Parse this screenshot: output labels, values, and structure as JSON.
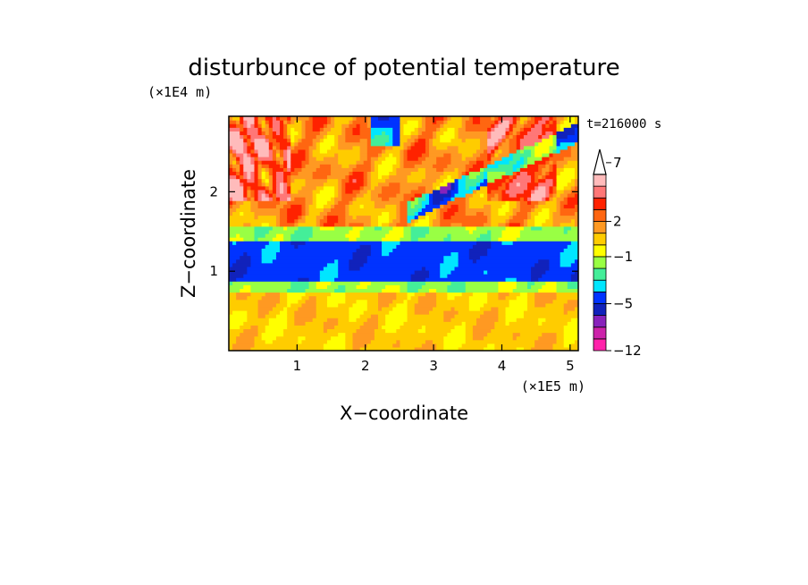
{
  "chart_data": {
    "type": "heatmap",
    "title": "disturbunce of potential temperature",
    "time_label": "t=216000 s",
    "xlabel": "X−coordinate",
    "ylabel": "Z−coordinate",
    "x_unit_label": "(×1E5 m)",
    "y_unit_label": "(×1E4 m)",
    "xlim": [
      0,
      5.12
    ],
    "ylim": [
      0,
      2.95
    ],
    "x_ticks": [
      {
        "value": 1,
        "label": "1"
      },
      {
        "value": 2,
        "label": "2"
      },
      {
        "value": 3,
        "label": "3"
      },
      {
        "value": 4,
        "label": "4"
      },
      {
        "value": 5,
        "label": "5"
      }
    ],
    "y_ticks": [
      {
        "value": 1,
        "label": "1"
      },
      {
        "value": 2,
        "label": "2"
      }
    ],
    "colorbar": {
      "levels": [
        -12,
        -10,
        -8,
        -6,
        -5,
        -4,
        -3,
        -2,
        -1,
        0,
        1,
        2,
        3,
        4,
        5,
        6,
        7,
        8,
        9,
        10
      ],
      "colors": [
        "#ff22aa",
        "#cc22aa",
        "#8822bb",
        "#1122bb",
        "#0033ff",
        "#00e6ff",
        "#44ee99",
        "#99ff44",
        "#ffff00",
        "#ffcc00",
        "#ff9922",
        "#ff6611",
        "#ff2200",
        "#ff7777",
        "#ffbbbb"
      ],
      "tick_labels": [
        {
          "value": 7,
          "label": "7"
        },
        {
          "value": 2,
          "label": "2"
        },
        {
          "value": -1,
          "label": "−1"
        },
        {
          "value": -5,
          "label": "−5"
        },
        {
          "value": -12,
          "label": "−12"
        }
      ],
      "extend": "max"
    },
    "field_description_bands": [
      {
        "z_range": [
          0.0,
          0.75
        ],
        "dominant_value": 0.5
      },
      {
        "z_range": [
          0.75,
          0.88
        ],
        "dominant_value": -1.5
      },
      {
        "z_range": [
          0.88,
          1.38
        ],
        "dominant_value": -4.5
      },
      {
        "z_range": [
          1.38,
          1.55
        ],
        "dominant_value": -1.5
      },
      {
        "z_range": [
          1.55,
          2.95
        ],
        "dominant_value": 1.5
      }
    ]
  }
}
